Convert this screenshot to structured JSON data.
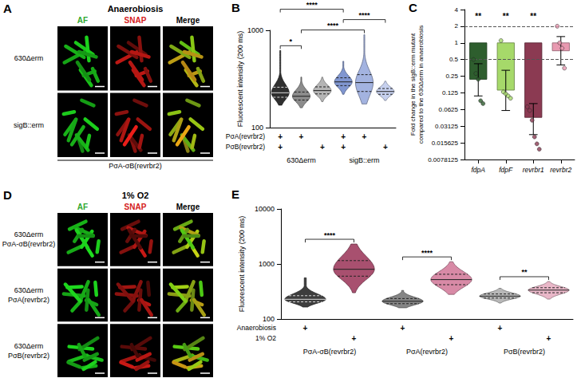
{
  "image_panels": [
    {
      "panel": "A",
      "title": "Anaerobiosis",
      "columns": [
        "AF",
        "SNAP",
        "Merge"
      ],
      "rows": [
        [
          "630Δerm"
        ],
        [
          "sigB::erm"
        ]
      ],
      "caption": "PσA-σB(revrbr2)"
    },
    {
      "panel": "D",
      "title": "1% O2",
      "columns": [
        "AF",
        "SNAP",
        "Merge"
      ],
      "rows": [
        [
          "630Δerm",
          "PσA-σB(revrbr2)"
        ],
        [
          "630Δerm",
          "PσA(revrbr2)"
        ],
        [
          "630Δerm",
          "PσB(revrbr2)"
        ]
      ]
    }
  ],
  "chart_data": [
    {
      "panel": "B",
      "type": "violin",
      "ylabel": "Fluorescent intensity (200 ms)",
      "log": "y",
      "ylim": [
        100,
        1000
      ],
      "yticks": [
        100,
        1000
      ],
      "grid": false,
      "tick_labels": "y",
      "violins": [
        {
          "color": "#2f2f2f",
          "min": 170,
          "q1": 205,
          "median": 228,
          "q3": 260,
          "max": 620
        },
        {
          "color": "#8c8c8c",
          "min": 160,
          "q1": 192,
          "median": 210,
          "q3": 232,
          "max": 330
        },
        {
          "color": "#b5b5b5",
          "min": 185,
          "q1": 222,
          "median": 240,
          "q3": 262,
          "max": 330
        },
        {
          "color": "#8096d0",
          "min": 220,
          "q1": 270,
          "median": 295,
          "q3": 325,
          "max": 480
        },
        {
          "color": "#a3b3e0",
          "min": 175,
          "q1": 235,
          "median": 290,
          "q3": 350,
          "max": 900
        },
        {
          "color": "#c6d0ee",
          "min": 190,
          "q1": 220,
          "median": 235,
          "q3": 252,
          "max": 300
        }
      ],
      "condition_rows": [
        {
          "label": "PσA(revrbr2)",
          "marks": [
            "+",
            "+",
            null,
            "+",
            "+",
            null
          ]
        },
        {
          "label": "PσB(revrbr2)",
          "marks": [
            "+",
            null,
            "+",
            "+",
            null,
            "+"
          ]
        }
      ],
      "groups": [
        {
          "label": "630Δerm",
          "span": [
            0,
            2
          ]
        },
        {
          "label": "sigB::erm",
          "span": [
            3,
            5
          ]
        }
      ],
      "comparisons": [
        {
          "from": 0,
          "to": 1,
          "label": "*"
        },
        {
          "from": 1,
          "to": 4,
          "label": "****"
        },
        {
          "from": 3,
          "to": 5,
          "label": "****"
        },
        {
          "from": 0,
          "to": 3,
          "label": "****"
        }
      ]
    },
    {
      "panel": "C",
      "type": "bar",
      "ylabel": "Fold change in the sigB::erm mutant compared to the 630Δerm in anaerobiosis",
      "log": "y",
      "ylim": [
        0.0078125,
        4
      ],
      "yticks": [
        0.0078125,
        0.015625,
        0.03125,
        0.0625,
        0.125,
        0.25,
        0.5,
        1,
        2,
        4
      ],
      "grid": false,
      "categories": [
        "fdpA",
        "fdpF",
        "revrbr1",
        "revrbr2"
      ],
      "values": [
        0.22,
        0.14,
        0.045,
        0.72
      ],
      "errors": [
        [
          0.11,
          0.42
        ],
        [
          0.06,
          0.32
        ],
        [
          0.022,
          0.08
        ],
        [
          0.4,
          1.3
        ]
      ],
      "points": [
        [
          0.5,
          0.28,
          0.22,
          0.09,
          0.08
        ],
        [
          1.1,
          0.13,
          0.12,
          0.11,
          0.1
        ],
        [
          0.07,
          0.06,
          0.04,
          0.02,
          0.015,
          0.012
        ],
        [
          2,
          1,
          0.8,
          0.35
        ]
      ],
      "colors": [
        "#2e5e2e",
        "#a6d96a",
        "#8b3a52",
        "#e899b0"
      ],
      "bar_base": 1,
      "reference_lines": [
        2,
        0.5
      ],
      "significance": [
        "**",
        "**",
        "**",
        null
      ]
    },
    {
      "panel": "E",
      "type": "violin",
      "ylabel": "Fluorescent intensity (200 ms)",
      "log": "y",
      "ylim": [
        100,
        10000
      ],
      "yticks": [
        100,
        1000,
        10000
      ],
      "grid": false,
      "tick_labels": "y",
      "violins": [
        {
          "color": "#3d3d3d",
          "min": 165,
          "q1": 205,
          "median": 228,
          "q3": 265,
          "max": 560
        },
        {
          "color": "#a8506f",
          "min": 300,
          "q1": 600,
          "median": 800,
          "q3": 1150,
          "max": 2300
        },
        {
          "color": "#858585",
          "min": 160,
          "q1": 190,
          "median": 210,
          "q3": 235,
          "max": 330
        },
        {
          "color": "#d88aa6",
          "min": 280,
          "q1": 420,
          "median": 520,
          "q3": 650,
          "max": 1100
        },
        {
          "color": "#b8b8b8",
          "min": 195,
          "q1": 240,
          "median": 260,
          "q3": 285,
          "max": 360
        },
        {
          "color": "#e9b7c8",
          "min": 230,
          "q1": 300,
          "median": 335,
          "q3": 370,
          "max": 480
        }
      ],
      "condition_rows": [
        {
          "label": "Anaerobiosis",
          "marks": [
            "+",
            null,
            "+",
            null,
            "+",
            null
          ]
        },
        {
          "label": "1% O2",
          "marks": [
            null,
            "+",
            null,
            "+",
            null,
            "+"
          ]
        }
      ],
      "groups": [
        {
          "label": "PσA-σB(revrbr2)",
          "span": [
            0,
            1
          ]
        },
        {
          "label": "PσA(revrbr2)",
          "span": [
            2,
            3
          ]
        },
        {
          "label": "PσB(revrbr2)",
          "span": [
            4,
            5
          ]
        }
      ],
      "comparisons": [
        {
          "from": 0,
          "to": 1,
          "label": "****"
        },
        {
          "from": 2,
          "to": 3,
          "label": "****"
        },
        {
          "from": 4,
          "to": 5,
          "label": "**"
        }
      ]
    }
  ]
}
